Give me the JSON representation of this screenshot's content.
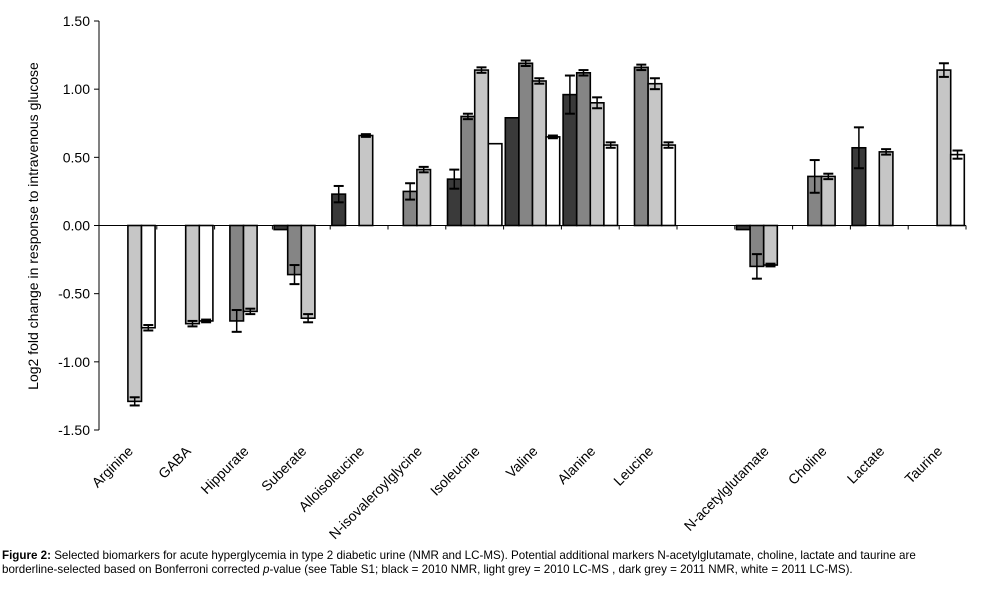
{
  "chart_data": {
    "type": "bar",
    "ylabel": "Log2 fold change in response to intravenous glucose",
    "ylim": [
      -1.5,
      1.5
    ],
    "yticks": [
      "1.50",
      "1.00",
      "0.50",
      "0.00",
      "-0.50",
      "-1.00",
      "-1.50"
    ],
    "ytick_values": [
      1.5,
      1.0,
      0.5,
      0.0,
      -0.5,
      -1.0,
      -1.5
    ],
    "categories": [
      "Arginine",
      "GABA",
      "Hippurate",
      "Suberate",
      "Alloisoleucine",
      "N-isovaleroylglycine",
      "Isoleucine",
      "Valine",
      "Alanine",
      "Leucine",
      "",
      "N-acetylglutamate",
      "Choline",
      "Lactate",
      "Taurine"
    ],
    "series": [
      {
        "name": "2010 NMR",
        "color": "#3a3a3a",
        "values": [
          null,
          null,
          null,
          -0.03,
          0.23,
          null,
          0.34,
          0.79,
          0.96,
          null,
          null,
          -0.03,
          null,
          0.57,
          null
        ],
        "errors": [
          null,
          null,
          null,
          null,
          0.06,
          null,
          0.07,
          null,
          0.14,
          null,
          null,
          null,
          null,
          0.15,
          null
        ]
      },
      {
        "name": "2011 NMR",
        "color": "#858585",
        "values": [
          null,
          null,
          -0.7,
          -0.36,
          null,
          0.25,
          0.8,
          1.19,
          1.12,
          1.16,
          null,
          -0.3,
          0.36,
          null,
          null
        ],
        "errors": [
          null,
          null,
          0.08,
          0.07,
          null,
          0.06,
          0.02,
          0.02,
          0.02,
          0.02,
          null,
          0.09,
          0.12,
          null,
          null
        ]
      },
      {
        "name": "2010 LC-MS",
        "color": "#c6c6c6",
        "values": [
          -1.29,
          -0.72,
          -0.63,
          -0.68,
          0.66,
          0.41,
          1.14,
          1.06,
          0.9,
          1.04,
          null,
          -0.29,
          0.36,
          0.54,
          1.14
        ],
        "errors": [
          0.03,
          0.02,
          0.02,
          0.03,
          0.01,
          0.02,
          0.02,
          0.02,
          0.04,
          0.04,
          null,
          0.01,
          0.02,
          0.02,
          0.05
        ]
      },
      {
        "name": "2011 LC-MS",
        "color": "#ffffff",
        "values": [
          -0.75,
          -0.7,
          null,
          null,
          null,
          null,
          0.6,
          0.65,
          0.59,
          0.59,
          null,
          null,
          null,
          null,
          0.52
        ],
        "errors": [
          0.02,
          0.01,
          null,
          null,
          null,
          null,
          null,
          0.01,
          0.02,
          0.02,
          null,
          null,
          null,
          null,
          0.03
        ]
      }
    ]
  },
  "caption": {
    "label": "Figure 2:",
    "text_before_p": " Selected biomarkers for acute hyperglycemia in type 2 diabetic urine (NMR and LC-MS). Potential additional markers N-acetylglutamate, choline, lactate and taurine are borderline-selected based on Bonferroni corrected ",
    "p": "p",
    "text_after_p": "-value (see Table S1; black = 2010 NMR, light grey = 2010 LC-MS , dark grey = 2011 NMR, white = 2011 LC-MS)."
  }
}
